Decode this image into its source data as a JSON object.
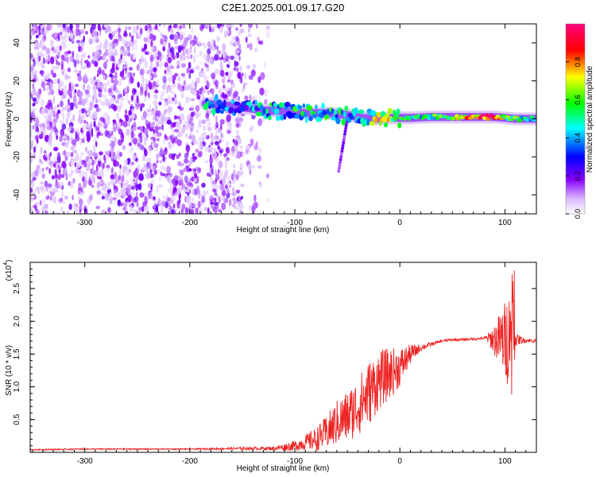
{
  "title": "C2E1.2025.001.09.17.G20",
  "chart_data": [
    {
      "type": "heatmap",
      "title": "C2E1.2025.001.09.17.G20",
      "xlabel": "Height of straight line (km)",
      "ylabel": "Frequency (Hz)",
      "xlim": [
        -352,
        130
      ],
      "ylim": [
        -50,
        50
      ],
      "x_ticks": [
        -300,
        -200,
        -100,
        0,
        100
      ],
      "x_tick_labels": [
        "-300",
        "-200",
        "-100",
        "0",
        "100"
      ],
      "y_ticks": [
        -40,
        -20,
        0,
        20,
        40
      ],
      "y_tick_labels": [
        "-40",
        "-20",
        "0",
        "20",
        "40"
      ],
      "colorbar": {
        "label": "Normalized spectral amplitude",
        "range": [
          0,
          1
        ],
        "ticks": [
          0.0,
          0.2,
          0.4,
          0.6,
          0.8
        ],
        "tick_labels": [
          "0.0",
          "0.2",
          "0.4",
          "0.6",
          "0.8"
        ],
        "colors": [
          "#ffffff",
          "#8a00ff",
          "#0000ff",
          "#00ffff",
          "#00ff00",
          "#ffff00",
          "#ff0000",
          "#ff0080"
        ]
      },
      "ridge": {
        "x": [
          -185,
          -165,
          -150,
          -130,
          -110,
          -90,
          -70,
          -50,
          -35,
          -20,
          -10,
          0,
          10,
          30,
          50,
          70,
          80,
          90,
          100,
          110,
          120,
          130
        ],
        "center_hz": [
          8,
          7,
          6,
          4.5,
          4,
          3,
          3,
          2,
          0.5,
          0,
          0.5,
          0.5,
          0.5,
          1,
          1,
          1,
          1,
          1,
          0.5,
          0,
          0,
          0
        ],
        "amplitude": [
          0.5,
          0.45,
          0.35,
          0.5,
          0.5,
          0.55,
          0.55,
          0.5,
          0.45,
          0.75,
          0.7,
          0.6,
          0.55,
          0.6,
          0.7,
          0.8,
          0.95,
          0.9,
          0.7,
          0.65,
          0.5,
          0.5
        ]
      },
      "grid": false
    },
    {
      "type": "line",
      "xlabel": "Height of straight line (km)",
      "ylabel": "SNR (10 * v/v)",
      "y_multiplier_label": "(x10",
      "y_multiplier_exp": "4",
      "xlim": [
        -352,
        130
      ],
      "ylim": [
        0,
        2.9
      ],
      "x_ticks": [
        -300,
        -200,
        -100,
        0,
        100
      ],
      "x_tick_labels": [
        "-300",
        "-200",
        "-100",
        "0",
        "100"
      ],
      "y_ticks": [
        0.5,
        1.0,
        1.5,
        2.0,
        2.5
      ],
      "y_tick_labels": [
        "0.5",
        "1.0",
        "1.5",
        "2.0",
        "2.5"
      ],
      "series": [
        {
          "color": "#ee2222",
          "x": [
            -352,
            -300,
            -250,
            -200,
            -150,
            -120,
            -100,
            -90,
            -80,
            -70,
            -60,
            -50,
            -40,
            -30,
            -20,
            -10,
            0,
            10,
            20,
            30,
            40,
            50,
            60,
            70,
            80,
            85,
            90,
            95,
            100,
            105,
            108,
            110,
            120,
            130
          ],
          "y": [
            0.04,
            0.05,
            0.05,
            0.05,
            0.06,
            0.06,
            0.1,
            0.15,
            0.2,
            0.3,
            0.45,
            0.55,
            0.7,
            0.9,
            1.1,
            1.2,
            1.3,
            1.5,
            1.6,
            1.65,
            1.7,
            1.72,
            1.72,
            1.73,
            1.74,
            1.74,
            1.72,
            1.73,
            1.72,
            1.73,
            1.73,
            1.72,
            1.71,
            1.7
          ],
          "spread": [
            0.01,
            0.01,
            0.01,
            0.01,
            0.02,
            0.03,
            0.08,
            0.12,
            0.18,
            0.25,
            0.35,
            0.4,
            0.45,
            0.5,
            0.45,
            0.4,
            0.3,
            0.15,
            0.05,
            0.03,
            0.02,
            0.02,
            0.02,
            0.02,
            0.02,
            0.1,
            0.25,
            0.4,
            0.6,
            0.8,
            0.9,
            0.1,
            0.03,
            0.03
          ]
        }
      ],
      "grid": false
    }
  ]
}
